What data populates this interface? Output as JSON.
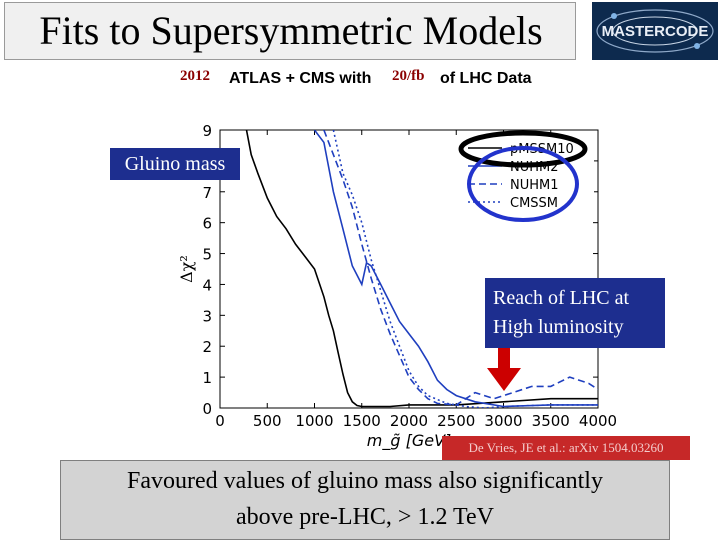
{
  "slide": {
    "title": "Fits to Supersymmetric Models",
    "logo_text": "MASTERCODE",
    "subtitle": {
      "year": "2012",
      "mid": "ATLAS + CMS with",
      "lumi": "20/fb",
      "end": "of LHC Data"
    },
    "gluino_label": "Gluino mass",
    "reach_label_1": "Reach of LHC at",
    "reach_label_2": "High luminosity",
    "reference": "De Vries, JE et al.: arXiv 1504.03260",
    "conclusion_1": "Favoured values of gluino mass also significantly",
    "conclusion_2": "above pre-LHC, > 1.2 TeV",
    "colors": {
      "box_blue": "#1d2e8f",
      "ref_red": "#c62828",
      "arrow_red": "#cc0000"
    }
  },
  "chart_data": {
    "type": "line",
    "xlabel": "m_g̃ [GeV]",
    "ylabel": "Δχ²",
    "xlim": [
      0,
      4000
    ],
    "ylim": [
      0,
      9
    ],
    "xticks": [
      "0",
      "500",
      "1000",
      "1500",
      "2000",
      "2500",
      "3000",
      "3500",
      "4000"
    ],
    "yticks": [
      "0",
      "1",
      "2",
      "3",
      "4",
      "5",
      "6",
      "7",
      "8",
      "9"
    ],
    "legend": "top-right",
    "series": [
      {
        "name": "pMSSM10",
        "style": "solid",
        "color": "#000000",
        "x": [
          280,
          330,
          400,
          500,
          600,
          700,
          800,
          900,
          1000,
          1100,
          1150,
          1200,
          1250,
          1300,
          1350,
          1400,
          1450,
          1500,
          1600,
          1800,
          2000,
          2500,
          3000,
          3500,
          4000
        ],
        "y": [
          9.0,
          8.2,
          7.6,
          6.8,
          6.2,
          5.8,
          5.3,
          4.9,
          4.5,
          3.6,
          3.0,
          2.5,
          1.8,
          1.1,
          0.5,
          0.2,
          0.08,
          0.05,
          0.05,
          0.05,
          0.1,
          0.1,
          0.2,
          0.3,
          0.3
        ]
      },
      {
        "name": "NUHM2",
        "style": "solid",
        "color": "#1f3fbf",
        "x": [
          1000,
          1100,
          1200,
          1300,
          1400,
          1500,
          1550,
          1600,
          1700,
          1800,
          1900,
          2000,
          2100,
          2200,
          2300,
          2400,
          2500,
          2700,
          3000,
          3500,
          4000
        ],
        "y": [
          9.0,
          8.6,
          7.0,
          5.8,
          4.6,
          4.0,
          4.7,
          4.6,
          4.0,
          3.4,
          2.8,
          2.4,
          2.0,
          1.5,
          0.9,
          0.6,
          0.4,
          0.2,
          0.05,
          0.1,
          0.1
        ]
      },
      {
        "name": "NUHM1",
        "style": "dashed",
        "color": "#1f3fbf",
        "x": [
          1100,
          1200,
          1300,
          1400,
          1500,
          1600,
          1700,
          1800,
          1900,
          2000,
          2100,
          2200,
          2300,
          2500,
          2700,
          2900,
          3100,
          3300,
          3500,
          3700,
          3900,
          4000
        ],
        "y": [
          9.0,
          8.2,
          7.4,
          6.5,
          5.3,
          4.2,
          3.2,
          2.4,
          1.7,
          1.0,
          0.6,
          0.3,
          0.15,
          0.1,
          0.5,
          0.3,
          0.5,
          0.7,
          0.7,
          1.0,
          0.8,
          0.6
        ]
      },
      {
        "name": "CMSSM",
        "style": "dotted",
        "color": "#1f3fbf",
        "x": [
          1200,
          1300,
          1400,
          1500,
          1600,
          1700,
          1800,
          1900,
          2000,
          2100,
          2200,
          2400,
          2600,
          2800,
          3000,
          3500,
          4000
        ],
        "y": [
          9.0,
          7.6,
          6.9,
          6.0,
          4.8,
          3.8,
          2.8,
          2.0,
          1.2,
          0.7,
          0.4,
          0.15,
          0.05,
          0.0,
          0.05,
          0.1,
          0.1
        ]
      }
    ]
  }
}
